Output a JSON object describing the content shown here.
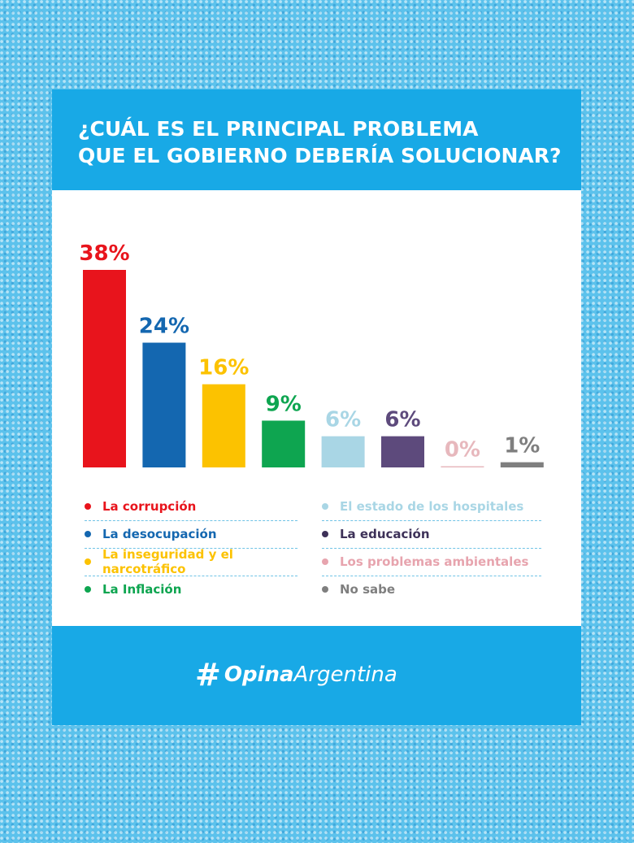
{
  "header": {
    "title_line1": "¿CUÁL ES EL PRINCIPAL PROBLEMA",
    "title_line2": "QUE EL GOBIERNO DEBERÍA SOLUCIONAR?"
  },
  "chart_data": {
    "type": "bar",
    "title": "¿CUÁL ES EL PRINCIPAL PROBLEMA QUE EL GOBIERNO DEBERÍA SOLUCIONAR?",
    "categories": [
      "La corrupción",
      "La desocupación",
      "La inseguridad y el narcotráfico",
      "La Inflación",
      "El estado de los hospitales",
      "La educación",
      "Los problemas ambientales",
      "No sabe"
    ],
    "values": [
      38,
      24,
      16,
      9,
      6,
      6,
      0,
      1
    ],
    "labels": [
      "38%",
      "24%",
      "16%",
      "9%",
      "6%",
      "6%",
      "0%",
      "1%"
    ],
    "colors": [
      "#e8141c",
      "#1467b0",
      "#fcc200",
      "#0ea550",
      "#a9d6e5",
      "#5d4a7c",
      "#e7b8bd",
      "#7f7f7f"
    ],
    "ylim": [
      0,
      38
    ],
    "legend": "bottom"
  },
  "legend": {
    "left": [
      {
        "label": "La corrupción",
        "color": "#e8141c"
      },
      {
        "label": "La desocupación",
        "color": "#1467b0"
      },
      {
        "label": "La inseguridad y el narcotráfico",
        "color": "#fcc200"
      },
      {
        "label": "La Inflación",
        "color": "#0ea550"
      }
    ],
    "right": [
      {
        "label": "El estado de los hospitales",
        "color": "#a9d6e5"
      },
      {
        "label": "La educación",
        "color": "#3d3158"
      },
      {
        "label": "Los problemas ambientales",
        "color": "#e7a4ae"
      },
      {
        "label": "No sabe",
        "color": "#7f7f7f"
      }
    ]
  },
  "footer": {
    "brand_icon": "#",
    "brand_bold": "Opina",
    "brand_light": "Argentina"
  },
  "colors": {
    "header_bg": "#18a9e6",
    "separator": "#6fc3e6"
  }
}
